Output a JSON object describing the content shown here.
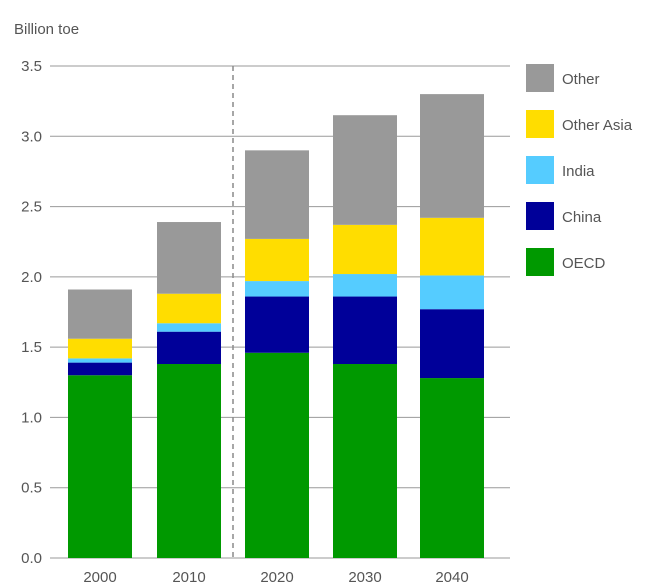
{
  "chart_data": {
    "type": "bar",
    "stacked": true,
    "ylabel": "Billion toe",
    "ylim": [
      0,
      3.5
    ],
    "yticks": [
      0.0,
      0.5,
      1.0,
      1.5,
      2.0,
      2.5,
      3.0,
      3.5
    ],
    "ytick_labels": [
      "0.0",
      "0.5",
      "1.0",
      "1.5",
      "2.0",
      "2.5",
      "3.0",
      "3.5"
    ],
    "categories": [
      "2000",
      "2010",
      "2020",
      "2030",
      "2040"
    ],
    "grid": "horizontal",
    "legend_position": "right",
    "forecast_divider_between": [
      "2010",
      "2020"
    ],
    "series": [
      {
        "name": "OECD",
        "color": "#009900",
        "values": [
          1.3,
          1.38,
          1.46,
          1.38,
          1.28
        ]
      },
      {
        "name": "China",
        "color": "#000099",
        "values": [
          0.09,
          0.23,
          0.4,
          0.48,
          0.49
        ]
      },
      {
        "name": "India",
        "color": "#55ccff",
        "values": [
          0.03,
          0.06,
          0.11,
          0.16,
          0.24
        ]
      },
      {
        "name": "Other Asia",
        "color": "#ffdd00",
        "values": [
          0.14,
          0.21,
          0.3,
          0.35,
          0.41
        ]
      },
      {
        "name": "Other",
        "color": "#999999",
        "values": [
          0.35,
          0.51,
          0.63,
          0.78,
          0.88
        ]
      }
    ],
    "legend_order": [
      "Other",
      "Other Asia",
      "India",
      "China",
      "OECD"
    ]
  }
}
